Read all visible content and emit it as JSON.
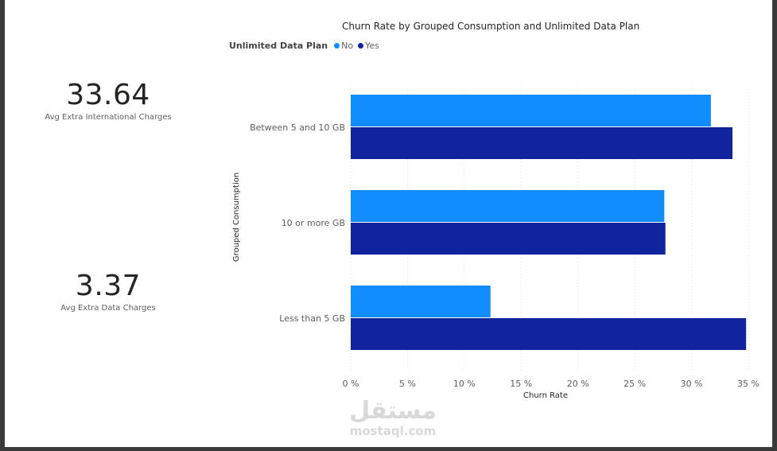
{
  "kpis": [
    {
      "value": "33.64",
      "label": "Avg Extra International Charges"
    },
    {
      "value": "3.37",
      "label": "Avg Extra Data Charges"
    }
  ],
  "legend": {
    "title": "Unlimited Data Plan",
    "items": [
      {
        "label": "No",
        "color": "#118DFF"
      },
      {
        "label": "Yes",
        "color": "#12239E"
      }
    ]
  },
  "watermark": {
    "arabic": "مستقل",
    "latin": "mostaql.com"
  },
  "chart_data": {
    "type": "bar",
    "orientation": "horizontal",
    "title": "Churn Rate by Grouped Consumption and Unlimited Data Plan",
    "xlabel": "Churn Rate",
    "ylabel": "Grouped Consumption",
    "categories": [
      "Between 5 and 10 GB",
      "10 or more GB",
      "Less than 5 GB"
    ],
    "series": [
      {
        "name": "No",
        "color": "#118DFF",
        "values": [
          31.7,
          27.6,
          12.3
        ]
      },
      {
        "name": "Yes",
        "color": "#12239E",
        "values": [
          33.6,
          27.7,
          34.8
        ]
      }
    ],
    "xlim": [
      0,
      35
    ],
    "xticks": [
      0,
      5,
      10,
      15,
      20,
      25,
      30,
      35
    ],
    "xtick_labels": [
      "0 %",
      "5 %",
      "10 %",
      "15 %",
      "20 %",
      "25 %",
      "30 %",
      "35 %"
    ],
    "grid": true,
    "legend_position": "top-left"
  }
}
